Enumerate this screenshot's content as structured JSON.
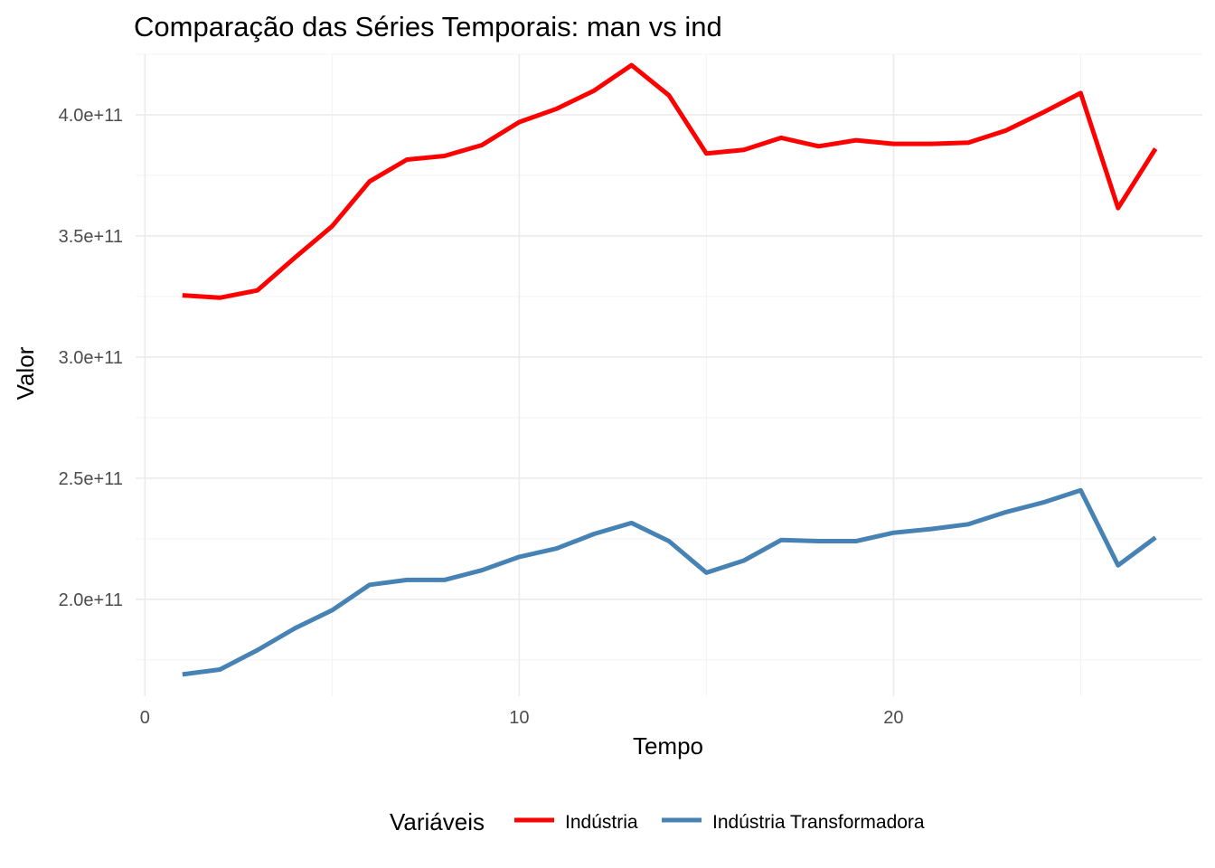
{
  "chart_data": {
    "type": "line",
    "title": "Comparação das Séries Temporais: man vs ind",
    "xlabel": "Tempo",
    "ylabel": "Valor",
    "xlim": [
      -0.25,
      28.25
    ],
    "ylim": [
      160000000000.0,
      425000000000.0
    ],
    "x_ticks": [
      0,
      10,
      20
    ],
    "x_tick_labels": [
      "0",
      "10",
      "20"
    ],
    "y_ticks": [
      200000000000.0,
      250000000000.0,
      300000000000.0,
      350000000000.0,
      400000000000.0
    ],
    "y_tick_labels": [
      "2.0e+11",
      "2.5e+11",
      "3.0e+11",
      "3.5e+11",
      "4.0e+11"
    ],
    "grid": true,
    "legend_title": "Variáveis",
    "legend_position": "bottom",
    "x": [
      1,
      2,
      3,
      4,
      5,
      6,
      7,
      8,
      9,
      10,
      11,
      12,
      13,
      14,
      15,
      16,
      17,
      18,
      19,
      20,
      21,
      22,
      23,
      24,
      25,
      26,
      27
    ],
    "series": [
      {
        "name": "Indústria",
        "color": "#ff0000",
        "values": [
          325500000000.0,
          324500000000.0,
          327500000000.0,
          341000000000.0,
          354000000000.0,
          372500000000.0,
          381500000000.0,
          383000000000.0,
          387500000000.0,
          397000000000.0,
          402500000000.0,
          410000000000.0,
          420500000000.0,
          408000000000.0,
          384000000000.0,
          385500000000.0,
          390500000000.0,
          387000000000.0,
          389500000000.0,
          388000000000.0,
          388000000000.0,
          388500000000.0,
          393500000000.0,
          401000000000.0,
          409000000000.0,
          361500000000.0,
          386000000000.0
        ]
      },
      {
        "name": "Indústria Transformadora",
        "color": "#4682b4",
        "values": [
          169000000000.0,
          171000000000.0,
          179000000000.0,
          188000000000.0,
          195500000000.0,
          206000000000.0,
          208000000000.0,
          208000000000.0,
          212000000000.0,
          217500000000.0,
          221000000000.0,
          227000000000.0,
          231500000000.0,
          224000000000.0,
          211000000000.0,
          216000000000.0,
          224500000000.0,
          224000000000.0,
          224000000000.0,
          227500000000.0,
          229000000000.0,
          231000000000.0,
          236000000000.0,
          240000000000.0,
          245000000000.0,
          214000000000.0,
          225500000000.0
        ]
      }
    ]
  }
}
